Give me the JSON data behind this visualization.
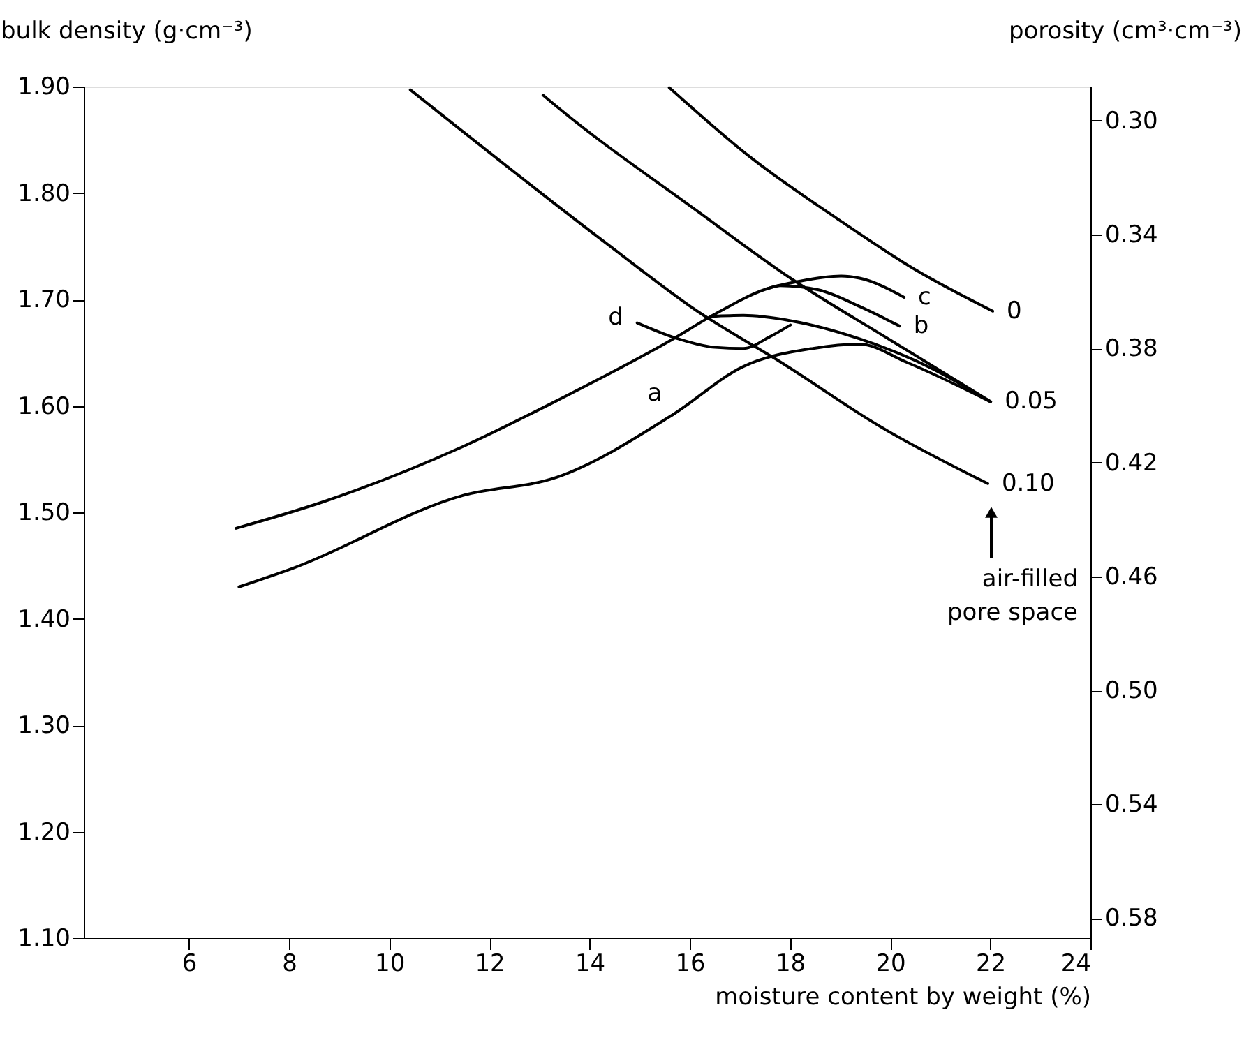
{
  "chart_data": {
    "type": "line",
    "xlabel": "moisture content by weight (%)",
    "ylabel": "bulk density (g·cm⁻³)",
    "y2label": "porosity (cm³·cm⁻³)",
    "xlim": [
      3.9,
      24
    ],
    "xticks": [
      6,
      8,
      10,
      12,
      14,
      16,
      18,
      20,
      22,
      24
    ],
    "ylim": [
      1.1,
      1.9
    ],
    "yticks": [
      {
        "value": 1.1,
        "label": "1.10"
      },
      {
        "value": 1.2,
        "label": "1.20"
      },
      {
        "value": 1.3,
        "label": "1.30"
      },
      {
        "value": 1.4,
        "label": "1.40"
      },
      {
        "value": 1.5,
        "label": "1.50"
      },
      {
        "value": 1.6,
        "label": "1.60"
      },
      {
        "value": 1.7,
        "label": "1.70"
      },
      {
        "value": 1.8,
        "label": "1.80"
      },
      {
        "value": 1.9,
        "label": "1.90"
      }
    ],
    "y2lim": [
      0.587,
      0.288
    ],
    "y2ticks": [
      {
        "value": 0.3,
        "label": "0.30"
      },
      0.34,
      0.38,
      0.42,
      0.46,
      {
        "value": 0.5,
        "label": "0.50"
      },
      0.54,
      0.58
    ],
    "grid": false,
    "marker": "none",
    "line_style": "solid",
    "series": [
      {
        "name": "0",
        "color": "#000000",
        "x": [
          15.59,
          17.2,
          18.94,
          20.5,
          22.05
        ],
        "values": [
          1.899,
          1.834,
          1.776,
          1.728,
          1.689
        ]
      },
      {
        "name": "0.05",
        "color": "#000000",
        "x": [
          13.07,
          13.35,
          16.15,
          18.01,
          20.0,
          22.01
        ],
        "values": [
          1.892,
          1.881,
          1.783,
          1.72,
          1.662,
          1.604
        ]
      },
      {
        "name": "0.10",
        "color": "#000000",
        "x": [
          10.42,
          14.27,
          16.15,
          17.82,
          19.86,
          21.95
        ],
        "values": [
          1.897,
          1.755,
          1.689,
          1.641,
          1.579,
          1.527
        ]
      },
      {
        "name": "c",
        "color": "#000000",
        "x": [
          6.94,
          8.69,
          11.48,
          13.35,
          15.67,
          16.42,
          17.54,
          18.18,
          19.02,
          19.39,
          20.28
        ],
        "values": [
          1.485,
          1.51,
          1.562,
          1.605,
          1.663,
          1.684,
          1.71,
          1.717,
          1.722,
          1.72,
          1.702
        ]
      },
      {
        "name": "b",
        "color": "#000000",
        "x": [
          17.54,
          17.81,
          18.57,
          19.41,
          20.19
        ],
        "values": [
          1.71,
          1.713,
          1.709,
          1.693,
          1.675
        ]
      },
      {
        "color": "#000000",
        "x": [
          16.42,
          17.07,
          18.01,
          19.39,
          20.8,
          22.0
        ],
        "values": [
          1.684,
          1.685,
          1.68,
          1.663,
          1.636,
          1.604
        ]
      },
      {
        "name": "d",
        "color": "#000000",
        "x": [
          14.95,
          15.77,
          16.5,
          17.07,
          17.6,
          18.01
        ],
        "values": [
          1.678,
          1.663,
          1.655,
          1.654,
          1.665,
          1.676
        ]
      },
      {
        "name": "a",
        "color": "#000000",
        "x": [
          7.0,
          8.05,
          11.48,
          13.35,
          15.67,
          17.07,
          18.46,
          19.39,
          20.33,
          22.0
        ],
        "values": [
          1.43,
          1.447,
          1.516,
          1.533,
          1.592,
          1.637,
          1.654,
          1.658,
          1.641,
          1.604
        ]
      }
    ],
    "annotations": [
      "air-filled\npore space"
    ]
  }
}
